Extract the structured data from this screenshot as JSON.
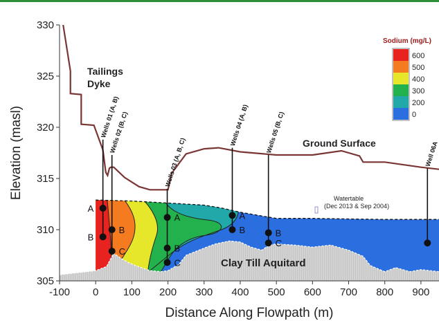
{
  "chart_data": {
    "type": "area",
    "xlabel": "Distance Along Flowpath (m)",
    "ylabel": "Elevation (masl)",
    "xlim": [
      -100,
      950
    ],
    "ylim": [
      305,
      330
    ],
    "x_ticks": [
      -100,
      0,
      100,
      200,
      300,
      400,
      500,
      600,
      700,
      800,
      900
    ],
    "y_ticks": [
      305,
      310,
      315,
      320,
      325,
      330
    ],
    "legend": {
      "title": "Sodium (mg/L)",
      "placement": "top-right",
      "entries": [
        {
          "label": "600",
          "color": "#e8231f"
        },
        {
          "label": "500",
          "color": "#f47b20"
        },
        {
          "label": "400",
          "color": "#e6e62a"
        },
        {
          "label": "300",
          "color": "#22b14c"
        },
        {
          "label": "200",
          "color": "#21a8a8"
        },
        {
          "label": "0",
          "color": "#2a6ee0"
        }
      ]
    },
    "series": [
      {
        "name": "Ground Surface",
        "x": [
          -90,
          -70,
          -70,
          -40,
          -40,
          -5,
          20,
          28,
          33,
          38,
          42,
          50,
          80,
          120,
          150,
          200,
          210,
          250,
          300,
          340,
          400,
          500,
          600,
          680,
          730,
          740,
          800,
          900,
          950
        ],
        "y": [
          330,
          325.5,
          323.3,
          323.2,
          320.3,
          320.2,
          317.8,
          315.6,
          315.3,
          316,
          316.1,
          316.1,
          315.1,
          314.2,
          313.9,
          313.9,
          315.5,
          317.4,
          317.9,
          318.0,
          317.6,
          317.3,
          317.3,
          317.7,
          317.2,
          316.6,
          316.6,
          316.1,
          315.9
        ]
      },
      {
        "name": "Watertable",
        "x": [
          0,
          100,
          200,
          300,
          350,
          400,
          450,
          500,
          600,
          700,
          800,
          900,
          950
        ],
        "y": [
          312.9,
          312.8,
          312.6,
          312.4,
          312.1,
          311.7,
          311.4,
          311.1,
          311.1,
          311.05,
          311.0,
          311.0,
          311.0
        ]
      },
      {
        "name": "Clay Till Aquitard",
        "x": [
          -100,
          -50,
          0,
          30,
          50,
          70,
          90,
          110,
          150,
          180,
          200,
          230,
          250,
          300,
          330,
          370,
          400,
          430,
          460,
          480,
          500,
          550,
          600,
          650,
          700,
          740,
          760,
          800,
          830,
          870,
          900,
          950
        ],
        "y": [
          305.6,
          305.8,
          306.0,
          306.4,
          307.7,
          307.2,
          306.8,
          306.5,
          306.0,
          305.9,
          306.0,
          306.6,
          307.5,
          308.2,
          308.6,
          308.9,
          308.8,
          308.3,
          308.0,
          308.5,
          308.6,
          308.5,
          308.3,
          308.5,
          308.0,
          307.4,
          306.5,
          305.9,
          306.3,
          305.9,
          306.1,
          305.9
        ]
      }
    ],
    "wells": [
      {
        "label": "Wells 01 (A, B)",
        "x": 20,
        "top": 318.8,
        "points": [
          {
            "name": "A",
            "y": 312.1
          },
          {
            "name": "B",
            "y": 309.3
          }
        ]
      },
      {
        "label": "Wells 02 (B, C)",
        "x": 45,
        "top": 317.3,
        "points": [
          {
            "name": "B",
            "y": 310.0
          },
          {
            "name": "C",
            "y": 307.9
          }
        ]
      },
      {
        "label": "Wells 03 (A, B, C)",
        "x": 198,
        "top": 314.0,
        "points": [
          {
            "name": "A",
            "y": 311.2
          },
          {
            "name": "B",
            "y": 308.2
          },
          {
            "name": "C",
            "y": 306.8
          }
        ]
      },
      {
        "label": "Wells 04 (A, B)",
        "x": 378,
        "top": 318.0,
        "points": [
          {
            "name": "A",
            "y": 311.4
          },
          {
            "name": "B",
            "y": 310.0
          }
        ]
      },
      {
        "label": "Wells 05 (B, C)",
        "x": 478,
        "top": 317.3,
        "points": [
          {
            "name": "B",
            "y": 309.7
          },
          {
            "name": "C",
            "y": 308.7
          }
        ]
      },
      {
        "label": "Well 06A",
        "x": 918,
        "top": 316.0,
        "points": [
          {
            "name": "",
            "y": 308.7
          }
        ]
      }
    ],
    "annotations": {
      "tailings_dyke": [
        "Tailings",
        "Dyke"
      ],
      "ground_surface": "Ground Surface",
      "watertable": [
        "Watertable",
        "(Dec 2013 & Sep 2004)"
      ],
      "aquitard": "Clay Till Aquitard"
    }
  }
}
